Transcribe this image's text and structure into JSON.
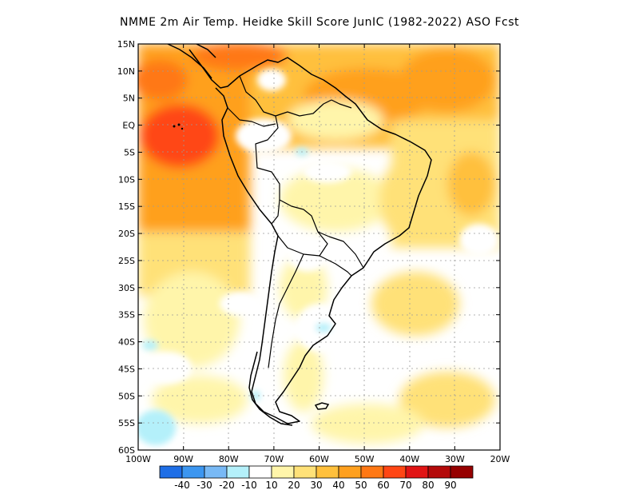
{
  "title": "NMME  2m Air Temp. Heidke Skill Score JunIC (1982-2022) ASO Fcst",
  "latitude_labels": [
    "15N",
    "10N",
    "5N",
    "EQ",
    "5S",
    "10S",
    "15S",
    "20S",
    "25S",
    "30S",
    "35S",
    "40S",
    "45S",
    "50S",
    "55S",
    "60S"
  ],
  "longitude_labels": [
    "100W",
    "90W",
    "80W",
    "70W",
    "60W",
    "50W",
    "40W",
    "30W",
    "20W"
  ],
  "colorbar": {
    "colors": [
      "#1e6ee6",
      "#3c96f0",
      "#78b9f5",
      "#b4f0fa",
      "#ffffff",
      "#fff5aa",
      "#ffe178",
      "#ffc03c",
      "#ffa01e",
      "#ff7814",
      "#ff4614",
      "#e11414",
      "#b40a0a",
      "#960000"
    ],
    "labels": [
      "-40",
      "-30",
      "-20",
      "-10",
      "10",
      "20",
      "30",
      "40",
      "50",
      "60",
      "70",
      "80",
      "90"
    ]
  },
  "map": {
    "region": "South America",
    "lat_range": [
      -60,
      15
    ],
    "lon_range": [
      -100,
      -20
    ],
    "grid": true,
    "colors": {
      "white": "#ffffff",
      "yellow": "#fff5aa",
      "gold": "#ffe178",
      "orange_light": "#ffc03c",
      "orange": "#ffa01e",
      "orange_dark": "#ff7814",
      "red_orange": "#ff4614",
      "light_blue": "#b4f0fa"
    }
  }
}
